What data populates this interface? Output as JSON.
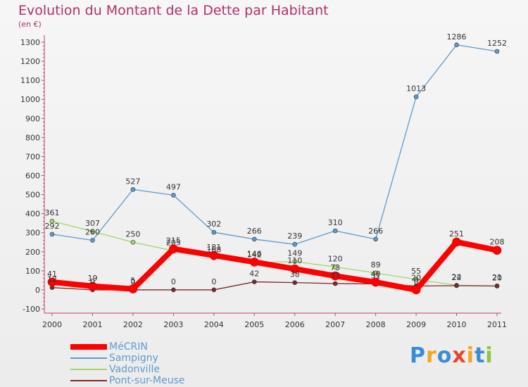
{
  "chart_data": {
    "type": "line",
    "title": "Evolution du Montant de la Dette par Habitant",
    "subtitle": "(en €)",
    "x": [
      "2000",
      "2001",
      "2002",
      "2003",
      "2004",
      "2005",
      "2006",
      "2007",
      "2008",
      "2009",
      "2010",
      "2011"
    ],
    "ylim": [
      -100,
      1300
    ],
    "yticks": [
      -100,
      0,
      100,
      200,
      300,
      400,
      500,
      600,
      700,
      800,
      900,
      1000,
      1100,
      1200,
      1300
    ],
    "grid": false,
    "legend_position": "bottom-left",
    "series": [
      {
        "name": "Sampigny",
        "color": "#5b9bd0",
        "width": 1.3,
        "values": [
          292,
          260,
          527,
          497,
          302,
          266,
          239,
          310,
          266,
          1013,
          1286,
          1252
        ],
        "labels": [
          "292",
          "260",
          "527",
          "497",
          "302",
          "266",
          "239",
          "310",
          "266",
          "1013",
          "1286",
          "1252"
        ]
      },
      {
        "name": "Vadonville",
        "color": "#9fd86a",
        "width": 1.3,
        "values": [
          361,
          307,
          250,
          205,
          168,
          142,
          149,
          120,
          89,
          55,
          24,
          21
        ],
        "labels": [
          "361",
          "307",
          "250",
          "205",
          "168",
          "142",
          "149",
          "120",
          "89",
          "55",
          "24",
          "21"
        ]
      },
      {
        "name": "Pont-sur-Meuse",
        "color": "#7a2a2a",
        "width": 1.3,
        "values": [
          12,
          0,
          0,
          0,
          0,
          42,
          38,
          33,
          31,
          20,
          22,
          20
        ],
        "labels": [
          "12",
          "0",
          "0",
          "0",
          "0",
          "42",
          "38",
          "33",
          "31",
          "20",
          "22",
          "20"
        ]
      },
      {
        "name": "MéCRIN",
        "color": "#ff0000",
        "width": 8,
        "values": [
          41,
          19,
          5,
          215,
          181,
          146,
          110,
          73,
          40,
          0,
          251,
          208
        ],
        "labels": [
          "41",
          "19",
          "5",
          "215",
          "181",
          "146",
          "110",
          "73",
          "40",
          "0",
          "251",
          "208"
        ]
      }
    ]
  },
  "brand": {
    "letters": [
      "P",
      "r",
      "o",
      "x",
      "i",
      "t",
      "i"
    ],
    "colors": [
      "#3a8ed0",
      "#f5a623",
      "#3a8ed0",
      "#e8452c",
      "#f5a623",
      "#3a8ed0",
      "#8dc63f"
    ]
  }
}
